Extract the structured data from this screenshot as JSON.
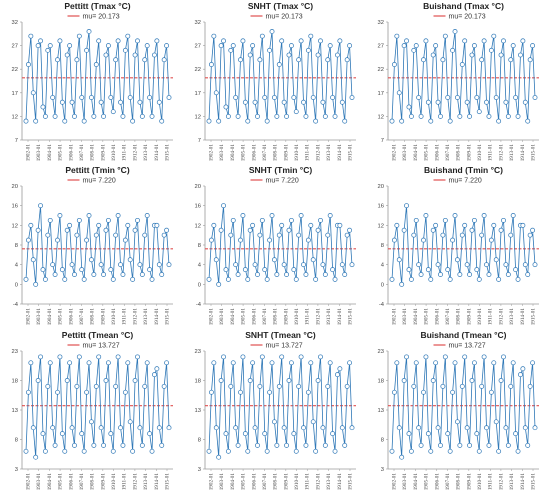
{
  "chart_data": [
    {
      "type": "line",
      "title": "Pettitt (Tmax °C)",
      "legend": "mu= 20.173",
      "mu": 20.173,
      "ylim": [
        7,
        32
      ],
      "yticks": [
        "7",
        "12",
        "17",
        "22",
        "27",
        "32"
      ],
      "series_color": "#2f78b7",
      "mu_color": "#e05050",
      "xticks": [
        "1902-01",
        "1903-01",
        "1904-01",
        "1905-01",
        "1906-01",
        "1907-01",
        "1908-01",
        "1909-01",
        "1910-01",
        "1911-01",
        "1912-01",
        "1913-01",
        "1914-01",
        "1915-01"
      ],
      "x_start": "1902-01",
      "points_per_year": 4,
      "values": [
        11,
        23,
        29,
        17,
        11,
        27,
        28,
        14,
        12,
        26,
        27,
        16,
        12,
        24,
        28,
        15,
        11,
        25,
        27,
        15,
        12,
        24,
        29,
        16,
        11,
        26,
        30,
        16,
        12,
        23,
        28,
        15,
        12,
        25,
        27,
        16,
        13,
        24,
        28,
        15,
        12,
        26,
        29,
        16,
        11,
        25,
        28,
        15,
        12,
        24,
        27,
        16,
        12,
        25,
        28,
        15,
        11,
        24,
        27,
        16
      ]
    },
    {
      "type": "line",
      "title": "SNHT (Tmax °C)",
      "legend": "mu= 20.173",
      "mu": 20.173,
      "ylim": [
        7,
        32
      ],
      "yticks": [
        "7",
        "12",
        "17",
        "22",
        "27",
        "32"
      ],
      "series_color": "#2f78b7",
      "mu_color": "#e05050",
      "xticks": [
        "1902-01",
        "1903-01",
        "1904-01",
        "1905-01",
        "1906-01",
        "1907-01",
        "1908-01",
        "1909-01",
        "1910-01",
        "1911-01",
        "1912-01",
        "1913-01",
        "1914-01",
        "1915-01"
      ],
      "x_start": "1902-01",
      "points_per_year": 4,
      "values": [
        11,
        23,
        29,
        17,
        11,
        27,
        28,
        14,
        12,
        26,
        27,
        16,
        12,
        24,
        28,
        15,
        11,
        25,
        27,
        15,
        12,
        24,
        29,
        16,
        11,
        26,
        30,
        16,
        12,
        23,
        28,
        15,
        12,
        25,
        27,
        16,
        13,
        24,
        28,
        15,
        12,
        26,
        29,
        16,
        11,
        25,
        28,
        15,
        12,
        24,
        27,
        16,
        12,
        25,
        28,
        15,
        11,
        24,
        27,
        16
      ]
    },
    {
      "type": "line",
      "title": "Buishand (Tmax °C)",
      "legend": "mu= 20.173",
      "mu": 20.173,
      "ylim": [
        7,
        32
      ],
      "yticks": [
        "7",
        "12",
        "17",
        "22",
        "27",
        "32"
      ],
      "series_color": "#2f78b7",
      "mu_color": "#e05050",
      "xticks": [
        "1902-01",
        "1903-01",
        "1904-01",
        "1905-01",
        "1906-01",
        "1907-01",
        "1908-01",
        "1909-01",
        "1910-01",
        "1911-01",
        "1912-01",
        "1913-01",
        "1914-01",
        "1915-01"
      ],
      "x_start": "1902-01",
      "points_per_year": 4,
      "values": [
        11,
        23,
        29,
        17,
        11,
        27,
        28,
        14,
        12,
        26,
        27,
        16,
        12,
        24,
        28,
        15,
        11,
        25,
        27,
        15,
        12,
        24,
        29,
        16,
        11,
        26,
        30,
        16,
        12,
        23,
        28,
        15,
        12,
        25,
        27,
        16,
        13,
        24,
        28,
        15,
        12,
        26,
        29,
        16,
        11,
        25,
        28,
        15,
        12,
        24,
        27,
        16,
        12,
        25,
        28,
        15,
        11,
        24,
        27,
        16
      ]
    },
    {
      "type": "line",
      "title": "Pettitt (Tmin °C)",
      "legend": "mu= 7.220",
      "mu": 7.22,
      "ylim": [
        -4,
        20
      ],
      "yticks": [
        "-4",
        "0",
        "4",
        "8",
        "12",
        "16",
        "20"
      ],
      "series_color": "#2f78b7",
      "mu_color": "#e05050",
      "xticks": [
        "1902-01",
        "1903-01",
        "1904-01",
        "1905-01",
        "1906-01",
        "1907-01",
        "1908-01",
        "1909-01",
        "1910-01",
        "1911-01",
        "1912-01",
        "1913-01",
        "1914-01",
        "1915-01"
      ],
      "x_start": "1902-01",
      "points_per_year": 4,
      "values": [
        1,
        9,
        12,
        5,
        0,
        11,
        16,
        3,
        1,
        10,
        13,
        4,
        2,
        9,
        14,
        3,
        1,
        11,
        12,
        4,
        2,
        10,
        13,
        3,
        1,
        9,
        14,
        5,
        2,
        10,
        12,
        4,
        2,
        11,
        13,
        3,
        1,
        10,
        14,
        4,
        2,
        9,
        12,
        5,
        1,
        11,
        13,
        4,
        2,
        10,
        14,
        3,
        1,
        12,
        12,
        4,
        2,
        10,
        11,
        4
      ]
    },
    {
      "type": "line",
      "title": "SNHT (Tmin °C)",
      "legend": "mu= 7.220",
      "mu": 7.22,
      "ylim": [
        -4,
        20
      ],
      "yticks": [
        "-4",
        "0",
        "4",
        "8",
        "12",
        "16",
        "20"
      ],
      "series_color": "#2f78b7",
      "mu_color": "#e05050",
      "xticks": [
        "1902-01",
        "1903-01",
        "1904-01",
        "1905-01",
        "1906-01",
        "1907-01",
        "1908-01",
        "1909-01",
        "1910-01",
        "1911-01",
        "1912-01",
        "1913-01",
        "1914-01",
        "1915-01"
      ],
      "x_start": "1902-01",
      "points_per_year": 4,
      "values": [
        1,
        9,
        12,
        5,
        0,
        11,
        16,
        3,
        1,
        10,
        13,
        4,
        2,
        9,
        14,
        3,
        1,
        11,
        12,
        4,
        2,
        10,
        13,
        3,
        1,
        9,
        14,
        5,
        2,
        10,
        12,
        4,
        2,
        11,
        13,
        3,
        1,
        10,
        14,
        4,
        2,
        9,
        12,
        5,
        1,
        11,
        13,
        4,
        2,
        10,
        14,
        3,
        1,
        12,
        12,
        4,
        2,
        10,
        11,
        4
      ]
    },
    {
      "type": "line",
      "title": "Buishand (Tmin °C)",
      "legend": "mu= 7.220",
      "mu": 7.22,
      "ylim": [
        -4,
        20
      ],
      "yticks": [
        "-4",
        "0",
        "4",
        "8",
        "12",
        "16",
        "20"
      ],
      "series_color": "#2f78b7",
      "mu_color": "#e05050",
      "xticks": [
        "1902-01",
        "1903-01",
        "1904-01",
        "1905-01",
        "1906-01",
        "1907-01",
        "1908-01",
        "1909-01",
        "1910-01",
        "1911-01",
        "1912-01",
        "1913-01",
        "1914-01",
        "1915-01"
      ],
      "x_start": "1902-01",
      "points_per_year": 4,
      "values": [
        1,
        9,
        12,
        5,
        0,
        11,
        16,
        3,
        1,
        10,
        13,
        4,
        2,
        9,
        14,
        3,
        1,
        11,
        12,
        4,
        2,
        10,
        13,
        3,
        1,
        9,
        14,
        5,
        2,
        10,
        12,
        4,
        2,
        11,
        13,
        3,
        1,
        10,
        14,
        4,
        2,
        9,
        12,
        5,
        1,
        11,
        13,
        4,
        2,
        10,
        14,
        3,
        1,
        12,
        12,
        4,
        2,
        10,
        11,
        4
      ]
    },
    {
      "type": "line",
      "title": "Pettitt (Tmean °C)",
      "legend": "mu= 13.727",
      "mu": 13.727,
      "ylim": [
        3,
        23
      ],
      "yticks": [
        "3",
        "8",
        "13",
        "18",
        "23"
      ],
      "series_color": "#2f78b7",
      "mu_color": "#e05050",
      "xticks": [
        "1902-01",
        "1903-01",
        "1904-01",
        "1905-01",
        "1906-01",
        "1907-01",
        "1908-01",
        "1909-01",
        "1910-01",
        "1911-01",
        "1912-01",
        "1913-01",
        "1914-01",
        "1915-01"
      ],
      "x_start": "1902-01",
      "points_per_year": 4,
      "values": [
        6,
        16,
        21,
        10,
        5,
        18,
        22,
        9,
        6,
        17,
        21,
        10,
        7,
        16,
        22,
        9,
        6,
        18,
        21,
        10,
        7,
        17,
        22,
        9,
        6,
        16,
        21,
        11,
        7,
        17,
        22,
        10,
        7,
        18,
        21,
        9,
        6,
        17,
        22,
        10,
        7,
        16,
        21,
        11,
        6,
        18,
        22,
        10,
        7,
        17,
        21,
        9,
        6,
        19,
        20,
        10,
        7,
        17,
        21,
        10
      ]
    },
    {
      "type": "line",
      "title": "SNHT (Tmean °C)",
      "legend": "mu= 13.727",
      "mu": 13.727,
      "ylim": [
        3,
        23
      ],
      "yticks": [
        "3",
        "8",
        "13",
        "18",
        "23"
      ],
      "series_color": "#2f78b7",
      "mu_color": "#e05050",
      "xticks": [
        "1902-01",
        "1903-01",
        "1904-01",
        "1905-01",
        "1906-01",
        "1907-01",
        "1908-01",
        "1909-01",
        "1910-01",
        "1911-01",
        "1912-01",
        "1913-01",
        "1914-01",
        "1915-01"
      ],
      "x_start": "1902-01",
      "points_per_year": 4,
      "values": [
        6,
        16,
        21,
        10,
        5,
        18,
        22,
        9,
        6,
        17,
        21,
        10,
        7,
        16,
        22,
        9,
        6,
        18,
        21,
        10,
        7,
        17,
        22,
        9,
        6,
        16,
        21,
        11,
        7,
        17,
        22,
        10,
        7,
        18,
        21,
        9,
        6,
        17,
        22,
        10,
        7,
        16,
        21,
        11,
        6,
        18,
        22,
        10,
        7,
        17,
        21,
        9,
        6,
        19,
        20,
        10,
        7,
        17,
        21,
        10
      ]
    },
    {
      "type": "line",
      "title": "Buishand (Tmean °C)",
      "legend": "mu= 13.727",
      "mu": 13.727,
      "ylim": [
        3,
        23
      ],
      "yticks": [
        "3",
        "8",
        "13",
        "18",
        "23"
      ],
      "series_color": "#2f78b7",
      "mu_color": "#e05050",
      "xticks": [
        "1902-01",
        "1903-01",
        "1904-01",
        "1905-01",
        "1906-01",
        "1907-01",
        "1908-01",
        "1909-01",
        "1910-01",
        "1911-01",
        "1912-01",
        "1913-01",
        "1914-01",
        "1915-01"
      ],
      "x_start": "1902-01",
      "points_per_year": 4,
      "values": [
        6,
        16,
        21,
        10,
        5,
        18,
        22,
        9,
        6,
        17,
        21,
        10,
        7,
        16,
        22,
        9,
        6,
        18,
        21,
        10,
        7,
        17,
        22,
        9,
        6,
        16,
        21,
        11,
        7,
        17,
        22,
        10,
        7,
        18,
        21,
        9,
        6,
        17,
        22,
        10,
        7,
        16,
        21,
        11,
        6,
        18,
        22,
        10,
        7,
        17,
        21,
        9,
        6,
        19,
        20,
        10,
        7,
        17,
        21,
        10
      ]
    }
  ]
}
